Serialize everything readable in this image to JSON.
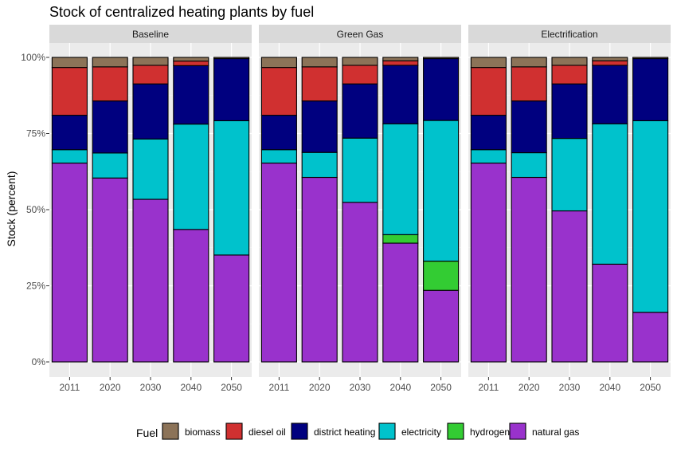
{
  "chart_data": {
    "type": "bar",
    "title": "Stock of centralized heating plants by fuel",
    "ylabel": "Stock (percent)",
    "xlabel": "",
    "ylim": [
      0,
      100
    ],
    "y_ticks": [
      "0%",
      "25%",
      "50%",
      "75%",
      "100%"
    ],
    "y_tick_values": [
      0,
      25,
      50,
      75,
      100
    ],
    "grid": true,
    "stacked": true,
    "categories": [
      "2011",
      "2020",
      "2030",
      "2040",
      "2050"
    ],
    "legend": {
      "title": "Fuel",
      "placement": "bottom",
      "items": [
        {
          "name": "biomass",
          "color": "#8C7358"
        },
        {
          "name": "diesel oil",
          "color": "#D03030"
        },
        {
          "name": "district heating",
          "color": "#00007F"
        },
        {
          "name": "electricity",
          "color": "#00C2CC"
        },
        {
          "name": "hydrogen",
          "color": "#33CC33"
        },
        {
          "name": "natural gas",
          "color": "#9932CC"
        }
      ]
    },
    "stack_order_bottom_to_top": [
      "natural gas",
      "hydrogen",
      "electricity",
      "district heating",
      "diesel oil",
      "biomass"
    ],
    "facets": [
      {
        "name": "Baseline",
        "series": [
          {
            "name": "natural gas",
            "values": [
              65.3,
              60.4,
              53.4,
              43.5,
              35.1
            ]
          },
          {
            "name": "hydrogen",
            "values": [
              0,
              0,
              0,
              0,
              0
            ]
          },
          {
            "name": "electricity",
            "values": [
              4.4,
              8.2,
              19.8,
              34.6,
              44.1
            ]
          },
          {
            "name": "district heating",
            "values": [
              11.3,
              17.1,
              18.1,
              19.2,
              20.4
            ]
          },
          {
            "name": "diesel oil",
            "values": [
              15.7,
              11.2,
              6.1,
              1.5,
              0
            ]
          },
          {
            "name": "biomass",
            "values": [
              3.3,
              3.1,
              2.6,
              1.2,
              0.4
            ]
          }
        ]
      },
      {
        "name": "Green Gas",
        "series": [
          {
            "name": "natural gas",
            "values": [
              65.3,
              60.6,
              52.4,
              39.0,
              23.5
            ]
          },
          {
            "name": "hydrogen",
            "values": [
              0,
              0,
              0,
              2.8,
              9.6
            ]
          },
          {
            "name": "electricity",
            "values": [
              4.4,
              8.2,
              21.1,
              36.4,
              46.2
            ]
          },
          {
            "name": "district heating",
            "values": [
              11.3,
              16.9,
              17.8,
              19.2,
              20.3
            ]
          },
          {
            "name": "diesel oil",
            "values": [
              15.7,
              11.2,
              6.1,
              1.5,
              0
            ]
          },
          {
            "name": "biomass",
            "values": [
              3.3,
              3.1,
              2.6,
              1.1,
              0.4
            ]
          }
        ]
      },
      {
        "name": "Electrification",
        "series": [
          {
            "name": "natural gas",
            "values": [
              65.3,
              60.6,
              49.6,
              32.1,
              16.3
            ]
          },
          {
            "name": "hydrogen",
            "values": [
              0,
              0,
              0,
              0,
              0
            ]
          },
          {
            "name": "electricity",
            "values": [
              4.4,
              8.1,
              23.8,
              46.1,
              62.9
            ]
          },
          {
            "name": "district heating",
            "values": [
              11.3,
              17.0,
              17.9,
              19.2,
              20.4
            ]
          },
          {
            "name": "diesel oil",
            "values": [
              15.7,
              11.2,
              6.1,
              1.5,
              0
            ]
          },
          {
            "name": "biomass",
            "values": [
              3.3,
              3.1,
              2.6,
              1.1,
              0.4
            ]
          }
        ]
      }
    ]
  }
}
